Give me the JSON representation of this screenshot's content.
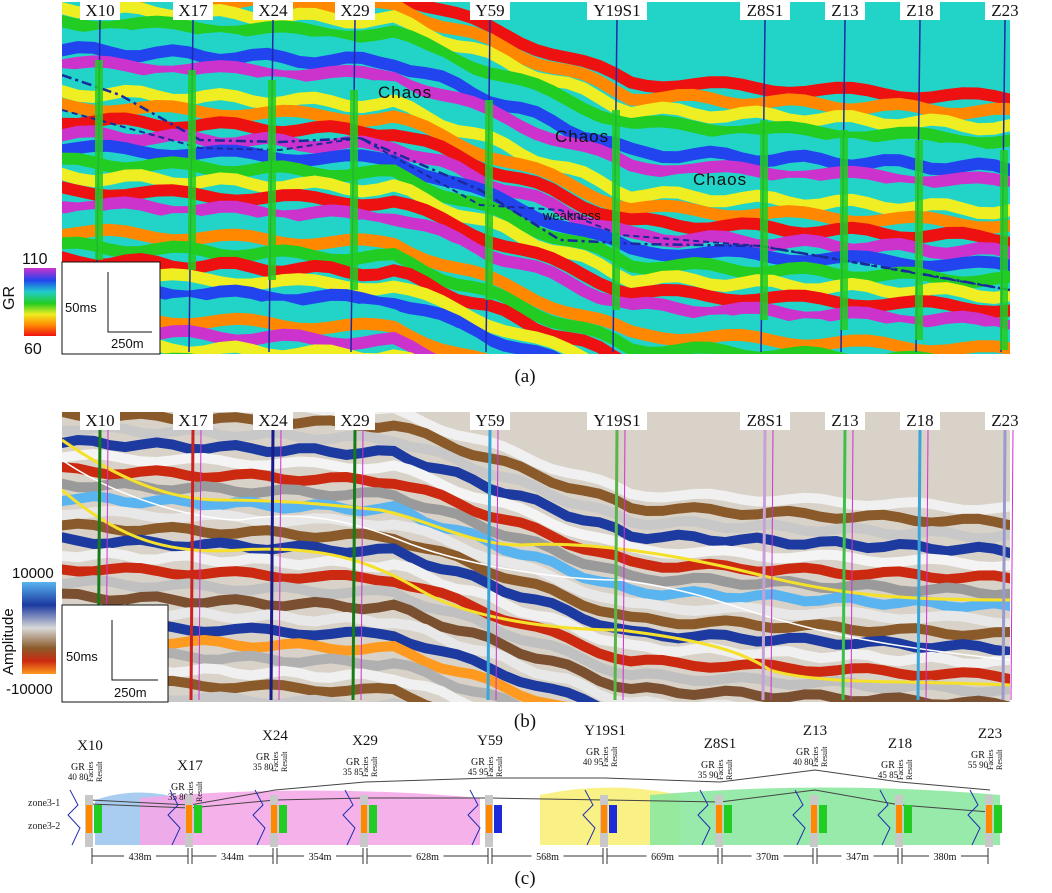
{
  "figure": {
    "panel_a": {
      "label": "(a)",
      "wells": [
        "X10",
        "X17",
        "X24",
        "X29",
        "Y59",
        "Y19S1",
        "Z8S1",
        "Z13",
        "Z18",
        "Z23"
      ],
      "annotations": [
        "Chaos",
        "Chaos",
        "Chaos",
        "weakness"
      ],
      "colorbar": {
        "label": "GR",
        "max": "110",
        "min": "60",
        "colors": [
          "#cc33cc",
          "#2244ee",
          "#22cccc",
          "#22cc22",
          "#eeee22",
          "#ff8800",
          "#ee1111"
        ]
      },
      "scale": {
        "time": "50ms",
        "distance": "250m"
      }
    },
    "panel_b": {
      "label": "(b)",
      "wells": [
        "X10",
        "X17",
        "X24",
        "X29",
        "Y59",
        "Y19S1",
        "Z8S1",
        "Z13",
        "Z18",
        "Z23"
      ],
      "colorbar": {
        "label": "Amplitude",
        "max": "10000",
        "min": "-10000",
        "colors": [
          "#5ab4f0",
          "#1c3aa0",
          "#d9d9d9",
          "#8a5a2a",
          "#cc2a10",
          "#ff9a20"
        ]
      },
      "scale": {
        "time": "50ms",
        "distance": "250m"
      }
    },
    "panel_c": {
      "label": "(c)",
      "zones": [
        "zone3-1",
        "zone3-2"
      ],
      "column_headers": {
        "gr": "GR",
        "facies": "Facies",
        "result": "Result"
      },
      "wells": [
        {
          "name": "X10",
          "gr_range": "40 80"
        },
        {
          "name": "X17",
          "gr_range": "35 80"
        },
        {
          "name": "X24",
          "gr_range": "35 80"
        },
        {
          "name": "X29",
          "gr_range": "35 85"
        },
        {
          "name": "Y59",
          "gr_range": "45 95"
        },
        {
          "name": "Y19S1",
          "gr_range": "40 95"
        },
        {
          "name": "Z8S1",
          "gr_range": "35 90"
        },
        {
          "name": "Z13",
          "gr_range": "40 80"
        },
        {
          "name": "Z18",
          "gr_range": "45 85"
        },
        {
          "name": "Z23",
          "gr_range": "55 90"
        }
      ],
      "distances": [
        "438m",
        "344m",
        "354m",
        "628m",
        "568m",
        "669m",
        "370m",
        "347m",
        "380m"
      ]
    }
  }
}
